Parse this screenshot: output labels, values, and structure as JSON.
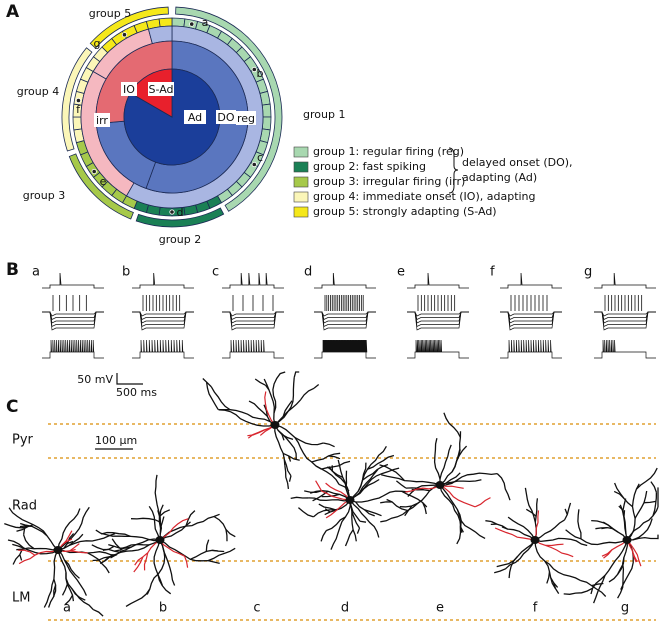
{
  "panel_labels": [
    "A",
    "B",
    "C"
  ],
  "panel_a": {
    "groups": [
      "group 1",
      "group 2",
      "group 3",
      "group 4",
      "group 5"
    ],
    "cells": [
      "a",
      "b",
      "c",
      "d",
      "e",
      "f",
      "g"
    ],
    "rings": [
      "Ad",
      "DO",
      "reg",
      "IO",
      "S-Ad",
      "irr"
    ],
    "legend": [
      "group 1: regular firing (reg)",
      "group 2: fast spiking",
      "group 3: irregular firing (irr)",
      "group 4: immediate onset (IO), adapting",
      "group 5: strongly adapting (S-Ad)"
    ],
    "bracket_label": [
      "delayed onset (DO),",
      "adapting (Ad)"
    ]
  },
  "panel_b": {
    "cells": [
      "a",
      "b",
      "c",
      "d",
      "e",
      "f",
      "g"
    ],
    "scale_voltage": "50 mV",
    "scale_time": "500 ms"
  },
  "panel_c": {
    "layers": [
      "Pyr",
      "Rad",
      "LM"
    ],
    "scale": "100 µm",
    "cells": [
      "a",
      "b",
      "c",
      "d",
      "e",
      "f",
      "g"
    ]
  }
}
